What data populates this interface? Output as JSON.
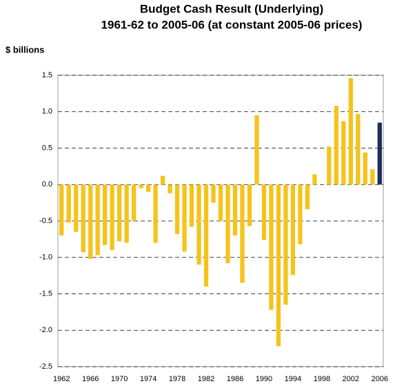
{
  "chart_data": {
    "type": "bar",
    "title": [
      "Budget Cash Result (Underlying)",
      "1961-62 to 2005-06 (at constant 2005-06 prices)"
    ],
    "y_label": "$ billions",
    "categories": [
      "1962",
      null,
      null,
      null,
      "1966",
      null,
      null,
      null,
      "1970",
      null,
      null,
      null,
      "1974",
      null,
      null,
      null,
      "1978",
      null,
      null,
      null,
      "1982",
      null,
      null,
      null,
      "1986",
      null,
      null,
      null,
      "1990",
      null,
      null,
      null,
      "1994",
      null,
      null,
      null,
      "1998",
      null,
      null,
      null,
      "2002",
      null,
      null,
      null,
      "2006"
    ],
    "values": [
      -0.7,
      -0.52,
      -0.65,
      -0.93,
      -1.02,
      -0.97,
      -0.83,
      -0.9,
      -0.78,
      -0.8,
      -0.5,
      -0.05,
      -0.1,
      -0.8,
      0.12,
      -0.12,
      -0.68,
      -0.92,
      -0.58,
      -1.1,
      -1.4,
      -0.25,
      -0.5,
      -1.08,
      -0.7,
      -1.35,
      -0.57,
      0.95,
      -0.76,
      -1.72,
      -2.22,
      -1.65,
      -1.24,
      -0.82,
      -0.34,
      0.14,
      0.0,
      0.52,
      1.08,
      0.87,
      1.46,
      0.97,
      0.44,
      0.21,
      0.85
    ],
    "colors": [
      "#f5c31c",
      "#f5c31c",
      "#f5c31c",
      "#f5c31c",
      "#f5c31c",
      "#f5c31c",
      "#f5c31c",
      "#f5c31c",
      "#f5c31c",
      "#f5c31c",
      "#f5c31c",
      "#f5c31c",
      "#f5c31c",
      "#f5c31c",
      "#f5c31c",
      "#f5c31c",
      "#f5c31c",
      "#f5c31c",
      "#f5c31c",
      "#f5c31c",
      "#f5c31c",
      "#f5c31c",
      "#f5c31c",
      "#f5c31c",
      "#f5c31c",
      "#f5c31c",
      "#f5c31c",
      "#f5c31c",
      "#f5c31c",
      "#f5c31c",
      "#f5c31c",
      "#f5c31c",
      "#f5c31c",
      "#f5c31c",
      "#f5c31c",
      "#f5c31c",
      "#f5c31c",
      "#f5c31c",
      "#f5c31c",
      "#f5c31c",
      "#f5c31c",
      "#f5c31c",
      "#f5c31c",
      "#f5c31c",
      "#1c2d5c"
    ],
    "ylim": [
      -2.5,
      1.5
    ],
    "yticks": [
      1.5,
      {
        "value": 1,
        "label": "1.0"
      },
      0.5,
      {
        "value": 0,
        "label": "0.0"
      },
      -0.5,
      {
        "value": -1,
        "label": "-1.0"
      },
      -1.5,
      {
        "value": -2,
        "label": "-2.0"
      },
      -2.5
    ],
    "grid": true
  }
}
